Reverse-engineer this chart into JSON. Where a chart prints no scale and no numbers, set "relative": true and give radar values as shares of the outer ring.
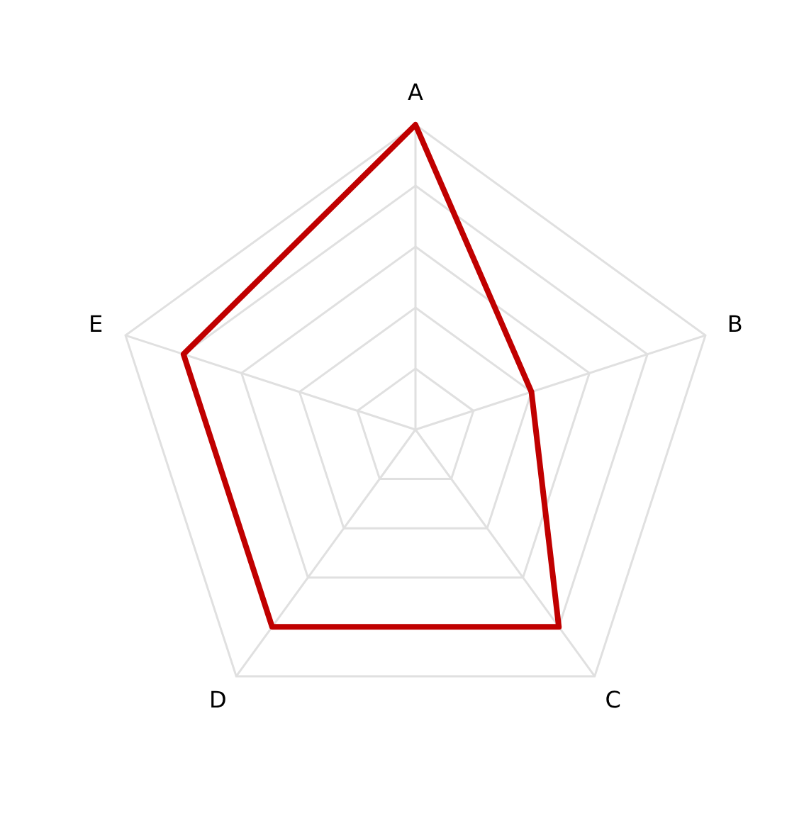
{
  "chart_data": {
    "type": "radar",
    "relative": true,
    "categories": [
      "A",
      "B",
      "C",
      "D",
      "E"
    ],
    "grid": true,
    "marker": "none",
    "series": [
      {
        "color": "#c00000",
        "values": [
          1,
          0.4,
          0.8,
          0.8,
          0.8
        ]
      }
    ]
  }
}
